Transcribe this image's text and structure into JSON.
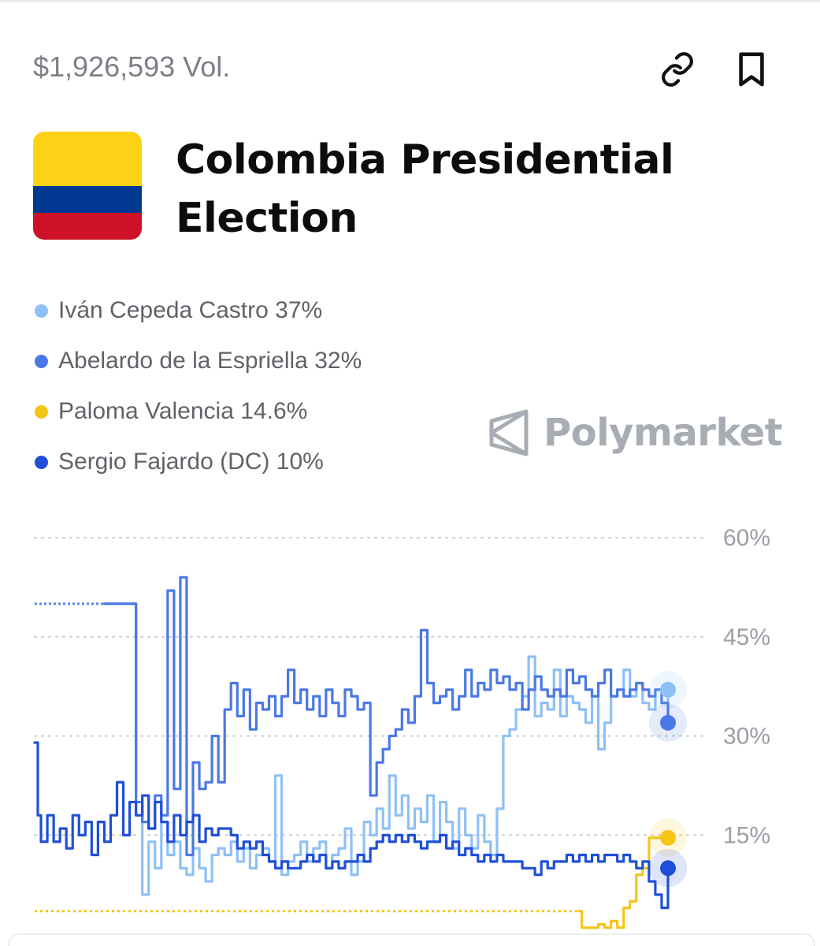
{
  "header": {
    "volume": "$1,926,593 Vol.",
    "link_icon": "link-icon",
    "bookmark_icon": "bookmark-icon"
  },
  "market": {
    "title": "Colombia Presidential Election",
    "flag_icon": "colombia-flag-icon",
    "flag_colors": [
      "#FCD116",
      "#003893",
      "#CE1126"
    ]
  },
  "watermark": {
    "text": "Polymarket",
    "icon": "polymarket-logo-icon"
  },
  "legend": [
    {
      "label": "Iván Cepeda Castro 37%",
      "color": "#8ec0f5"
    },
    {
      "label": "Abelardo de la Espriella 32%",
      "color": "#4a78e6"
    },
    {
      "label": "Paloma Valencia 14.6%",
      "color": "#f5c518"
    },
    {
      "label": "Sergio Fajardo (DC) 10%",
      "color": "#1f4fd8"
    }
  ],
  "chart_data": {
    "type": "line",
    "ylim": [
      3,
      60
    ],
    "yticks": [
      "60%",
      "45%",
      "30%",
      "15%"
    ],
    "ytick_values": [
      60,
      45,
      30,
      15
    ],
    "grid": true,
    "x_range": [
      0,
      100
    ],
    "series": [
      {
        "name": "Iván Cepeda Castro",
        "color": "#8ec0f5",
        "end_value": 37,
        "points": [
          [
            0,
            50
          ],
          [
            11,
            50
          ],
          [
            15,
            50
          ],
          [
            16,
            18
          ],
          [
            17,
            6
          ],
          [
            18,
            14
          ],
          [
            19,
            10
          ],
          [
            20,
            17
          ],
          [
            21,
            12
          ],
          [
            22,
            14
          ],
          [
            23,
            10
          ],
          [
            24,
            9
          ],
          [
            25,
            13
          ],
          [
            26,
            10
          ],
          [
            27,
            8
          ],
          [
            28,
            12
          ],
          [
            29,
            13
          ],
          [
            30,
            12
          ],
          [
            31,
            14
          ],
          [
            32,
            11
          ],
          [
            33,
            13
          ],
          [
            34,
            10
          ],
          [
            35,
            12
          ],
          [
            36,
            13
          ],
          [
            37,
            11
          ],
          [
            38,
            24
          ],
          [
            39,
            9
          ],
          [
            40,
            11
          ],
          [
            41,
            12
          ],
          [
            42,
            14
          ],
          [
            43,
            11
          ],
          [
            44,
            13
          ],
          [
            45,
            14
          ],
          [
            46,
            10
          ],
          [
            47,
            12
          ],
          [
            48,
            13
          ],
          [
            49,
            16
          ],
          [
            50,
            9
          ],
          [
            51,
            11
          ],
          [
            52,
            17
          ],
          [
            53,
            15
          ],
          [
            54,
            19
          ],
          [
            55,
            16
          ],
          [
            56,
            24
          ],
          [
            57,
            18
          ],
          [
            58,
            21
          ],
          [
            59,
            16
          ],
          [
            60,
            19
          ],
          [
            61,
            17
          ],
          [
            62,
            21
          ],
          [
            63,
            14
          ],
          [
            64,
            20
          ],
          [
            65,
            17
          ],
          [
            66,
            13
          ],
          [
            67,
            19
          ],
          [
            68,
            15
          ],
          [
            69,
            13
          ],
          [
            70,
            18
          ],
          [
            71,
            14
          ],
          [
            72,
            12
          ],
          [
            73,
            19
          ],
          [
            74,
            30
          ],
          [
            75,
            31
          ],
          [
            76,
            34
          ],
          [
            77,
            36
          ],
          [
            78,
            42
          ],
          [
            79,
            33
          ],
          [
            80,
            35
          ],
          [
            81,
            34
          ],
          [
            82,
            40
          ],
          [
            83,
            33
          ],
          [
            84,
            36
          ],
          [
            85,
            35
          ],
          [
            86,
            34
          ],
          [
            87,
            32
          ],
          [
            88,
            36
          ],
          [
            89,
            28
          ],
          [
            90,
            32
          ],
          [
            91,
            36
          ],
          [
            92,
            37
          ],
          [
            93,
            40
          ],
          [
            94,
            36
          ],
          [
            95,
            38
          ],
          [
            96,
            35
          ],
          [
            97,
            34
          ],
          [
            98,
            37
          ],
          [
            99,
            35
          ],
          [
            100,
            37
          ]
        ]
      },
      {
        "name": "Abelardo de la Espriella",
        "color": "#4a78e6",
        "end_value": 32,
        "points": [
          [
            0,
            50
          ],
          [
            11,
            50
          ],
          [
            15,
            50
          ],
          [
            16,
            20
          ],
          [
            17,
            17
          ],
          [
            18,
            16
          ],
          [
            19,
            21
          ],
          [
            20,
            18
          ],
          [
            21,
            52
          ],
          [
            22,
            22
          ],
          [
            23,
            54
          ],
          [
            24,
            12
          ],
          [
            25,
            26
          ],
          [
            26,
            22
          ],
          [
            27,
            23
          ],
          [
            28,
            30
          ],
          [
            29,
            23
          ],
          [
            30,
            34
          ],
          [
            31,
            38
          ],
          [
            32,
            33
          ],
          [
            33,
            37
          ],
          [
            34,
            31
          ],
          [
            35,
            35
          ],
          [
            36,
            34
          ],
          [
            37,
            36
          ],
          [
            38,
            33
          ],
          [
            39,
            36
          ],
          [
            40,
            40
          ],
          [
            41,
            35
          ],
          [
            42,
            37
          ],
          [
            43,
            34
          ],
          [
            44,
            36
          ],
          [
            45,
            33
          ],
          [
            46,
            37
          ],
          [
            47,
            35
          ],
          [
            48,
            33
          ],
          [
            49,
            37
          ],
          [
            50,
            36
          ],
          [
            51,
            34
          ],
          [
            52,
            35
          ],
          [
            53,
            21
          ],
          [
            54,
            26
          ],
          [
            55,
            28
          ],
          [
            56,
            30
          ],
          [
            57,
            31
          ],
          [
            58,
            34
          ],
          [
            59,
            32
          ],
          [
            60,
            36
          ],
          [
            61,
            46
          ],
          [
            62,
            38
          ],
          [
            63,
            35
          ],
          [
            64,
            36
          ],
          [
            65,
            37
          ],
          [
            66,
            34
          ],
          [
            67,
            36
          ],
          [
            68,
            40
          ],
          [
            69,
            36
          ],
          [
            70,
            38
          ],
          [
            71,
            37
          ],
          [
            72,
            40
          ],
          [
            73,
            38
          ],
          [
            74,
            39
          ],
          [
            75,
            37
          ],
          [
            76,
            38
          ],
          [
            77,
            34
          ],
          [
            78,
            37
          ],
          [
            79,
            39
          ],
          [
            80,
            37
          ],
          [
            81,
            36
          ],
          [
            82,
            37
          ],
          [
            83,
            36
          ],
          [
            84,
            40
          ],
          [
            85,
            38
          ],
          [
            86,
            39
          ],
          [
            87,
            37
          ],
          [
            88,
            36
          ],
          [
            89,
            38
          ],
          [
            90,
            40
          ],
          [
            91,
            36
          ],
          [
            92,
            37
          ],
          [
            93,
            36
          ],
          [
            94,
            37
          ],
          [
            95,
            38
          ],
          [
            96,
            37
          ],
          [
            97,
            36
          ],
          [
            98,
            37
          ],
          [
            99,
            35
          ],
          [
            100,
            32
          ]
        ]
      },
      {
        "name": "Paloma Valencia",
        "color": "#f5c518",
        "end_value": 14.6,
        "points": [
          [
            0,
            3.5
          ],
          [
            40,
            3.5
          ],
          [
            80,
            3.5
          ],
          [
            83,
            3.5
          ],
          [
            86,
            3.5
          ],
          [
            86.4,
            1
          ],
          [
            88,
            1
          ],
          [
            89,
            1.5
          ],
          [
            90,
            1
          ],
          [
            91,
            2
          ],
          [
            92,
            1
          ],
          [
            93,
            4
          ],
          [
            94,
            5
          ],
          [
            95,
            9
          ],
          [
            96,
            10
          ],
          [
            97,
            14.6
          ],
          [
            98,
            14.6
          ],
          [
            100,
            14.6
          ]
        ]
      },
      {
        "name": "Sergio Fajardo (DC)",
        "color": "#1f4fd8",
        "end_value": 10,
        "points": [
          [
            0,
            29
          ],
          [
            0.5,
            18
          ],
          [
            1,
            14
          ],
          [
            2,
            18
          ],
          [
            3,
            14
          ],
          [
            4,
            16
          ],
          [
            5,
            13
          ],
          [
            6,
            18
          ],
          [
            7,
            15
          ],
          [
            8,
            17
          ],
          [
            9,
            12
          ],
          [
            10,
            17
          ],
          [
            11,
            14
          ],
          [
            12,
            18
          ],
          [
            13,
            23
          ],
          [
            14,
            15
          ],
          [
            15,
            20
          ],
          [
            16,
            18
          ],
          [
            17,
            21
          ],
          [
            18,
            16
          ],
          [
            19,
            20
          ],
          [
            20,
            17
          ],
          [
            21,
            14
          ],
          [
            22,
            18
          ],
          [
            23,
            15
          ],
          [
            24,
            17
          ],
          [
            25,
            18
          ],
          [
            26,
            14
          ],
          [
            27,
            16
          ],
          [
            28,
            15
          ],
          [
            29,
            16
          ],
          [
            30,
            16
          ],
          [
            31,
            15
          ],
          [
            32,
            13
          ],
          [
            33,
            14
          ],
          [
            34,
            13
          ],
          [
            35,
            14
          ],
          [
            36,
            12
          ],
          [
            37,
            11
          ],
          [
            38,
            10
          ],
          [
            39,
            11
          ],
          [
            40,
            10
          ],
          [
            41,
            10
          ],
          [
            42,
            11
          ],
          [
            43,
            12
          ],
          [
            44,
            11
          ],
          [
            45,
            12
          ],
          [
            46,
            10
          ],
          [
            47,
            11
          ],
          [
            48,
            10
          ],
          [
            49,
            11
          ],
          [
            50,
            11
          ],
          [
            51,
            12
          ],
          [
            52,
            11
          ],
          [
            53,
            13
          ],
          [
            54,
            14
          ],
          [
            55,
            15
          ],
          [
            56,
            14
          ],
          [
            57,
            15
          ],
          [
            58,
            14
          ],
          [
            59,
            15
          ],
          [
            60,
            14
          ],
          [
            61,
            13
          ],
          [
            62,
            14
          ],
          [
            63,
            14
          ],
          [
            64,
            15
          ],
          [
            65,
            13
          ],
          [
            66,
            14
          ],
          [
            67,
            12
          ],
          [
            68,
            13
          ],
          [
            69,
            12
          ],
          [
            70,
            11
          ],
          [
            71,
            12
          ],
          [
            72,
            11
          ],
          [
            73,
            12
          ],
          [
            74,
            11
          ],
          [
            75,
            11
          ],
          [
            76,
            11
          ],
          [
            77,
            10
          ],
          [
            78,
            10
          ],
          [
            79,
            9
          ],
          [
            80,
            11
          ],
          [
            81,
            10
          ],
          [
            82,
            11
          ],
          [
            83,
            11
          ],
          [
            84,
            12
          ],
          [
            85,
            11
          ],
          [
            86,
            12
          ],
          [
            87,
            11
          ],
          [
            88,
            12
          ],
          [
            89,
            11
          ],
          [
            90,
            12
          ],
          [
            91,
            12
          ],
          [
            92,
            11
          ],
          [
            93,
            12
          ],
          [
            94,
            11
          ],
          [
            95,
            10
          ],
          [
            96,
            11
          ],
          [
            97,
            8
          ],
          [
            98,
            6
          ],
          [
            99,
            4
          ],
          [
            100,
            10
          ]
        ]
      }
    ]
  }
}
